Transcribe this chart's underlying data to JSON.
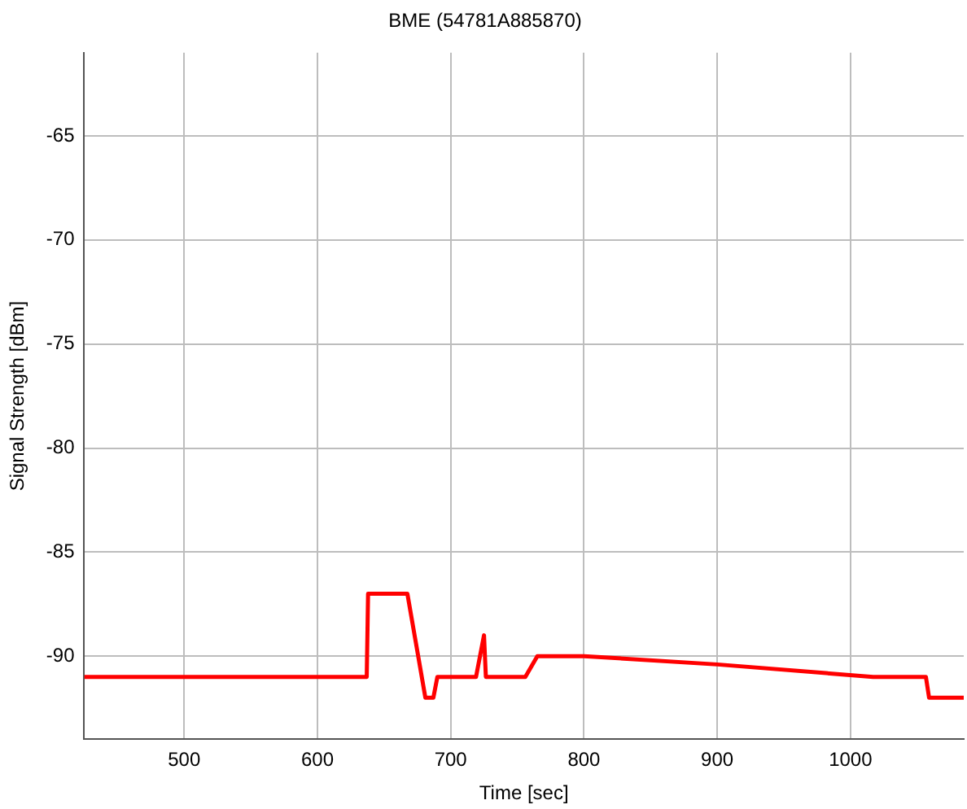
{
  "chart_data": {
    "type": "line",
    "title": "BME (54781A885870)",
    "xlabel": "Time [sec]",
    "ylabel": "Signal Strength [dBm]",
    "x": [
      425,
      637,
      638,
      667.5,
      681,
      687,
      690,
      719,
      725,
      726.4,
      756,
      765,
      800,
      900,
      1017,
      1056.6,
      1059,
      1085
    ],
    "series": [
      {
        "color": "#ff0000",
        "values": [
          -91,
          -91,
          -87,
          -87,
          -92,
          -92,
          -91,
          -91,
          -89,
          -91,
          -91,
          -90,
          -90,
          -90.4,
          -91,
          -91,
          -92,
          -92
        ]
      }
    ],
    "xlim": [
      425,
      1085
    ],
    "xticks": [
      500,
      600,
      700,
      800,
      900,
      1000
    ],
    "ylim": [
      -94,
      -61
    ],
    "yticks": [
      -90,
      -85,
      -80,
      -75,
      -70,
      -65
    ],
    "grid": true,
    "legend": false,
    "marker": "none",
    "line_style": "solid"
  }
}
